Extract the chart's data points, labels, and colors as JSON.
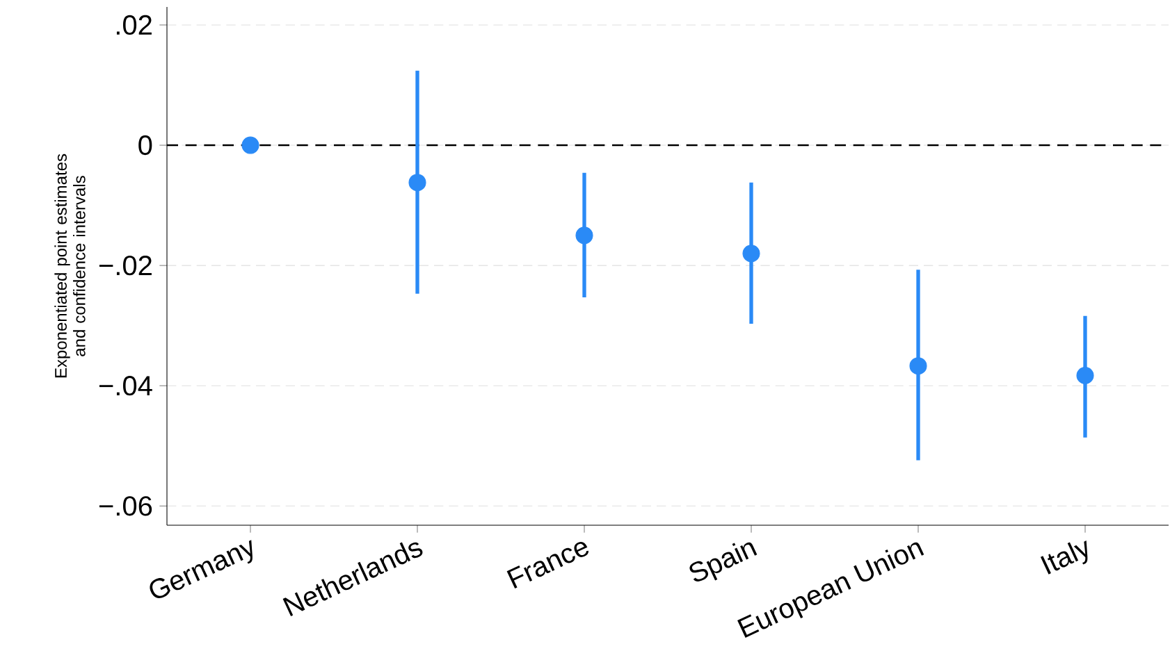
{
  "chart_data": {
    "type": "scatter",
    "ylabel": "Exponentiated point estimates and confidence intervals",
    "categories": [
      "Germany",
      "Netherlands",
      "France",
      "Spain",
      "European Union",
      "Italy"
    ],
    "values": [
      0,
      -0.0062,
      -0.015,
      -0.018,
      -0.0367,
      -0.0383
    ],
    "errors": [
      null,
      [
        -0.0247,
        0.0124
      ],
      [
        -0.0253,
        -0.0046
      ],
      [
        -0.0297,
        -0.0062
      ],
      [
        -0.0524,
        -0.0207
      ],
      [
        -0.0486,
        -0.0284
      ]
    ],
    "color": "#2a8af6",
    "marker": "circle",
    "grid": "y",
    "ylim": [
      -0.0632,
      0.023
    ],
    "yticks": [
      {
        "value": 0.02,
        "label": ".02"
      },
      0,
      {
        "value": -0.02,
        "label": "−.02"
      },
      {
        "value": -0.04,
        "label": "−.04"
      },
      {
        "value": -0.06,
        "label": "−.06"
      }
    ],
    "ref_lines": [
      {
        "axis": "y",
        "value": 0,
        "color": "#000000",
        "line_style": "dashed"
      }
    ]
  }
}
